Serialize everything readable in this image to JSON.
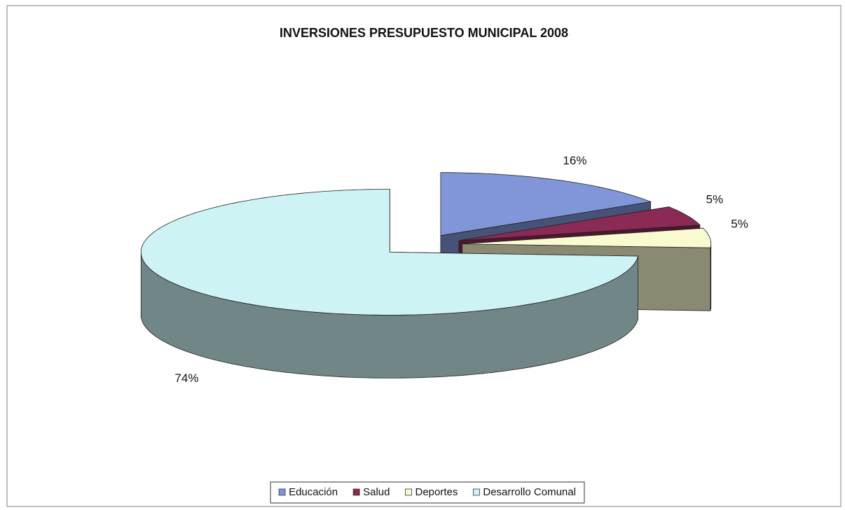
{
  "chart_data": {
    "type": "pie",
    "title": "INVERSIONES PRESUPUESTO MUNICIPAL 2008",
    "categories": [
      "Educación",
      "Salud",
      "Deportes",
      "Desarrollo Comunal"
    ],
    "values": [
      16,
      5,
      5,
      74
    ],
    "value_labels": [
      "16%",
      "5%",
      "5%",
      "74%"
    ],
    "colors": [
      "#8096d8",
      "#8a2a55",
      "#fafad0",
      "#cdf3f5"
    ],
    "legend": "bottom"
  }
}
